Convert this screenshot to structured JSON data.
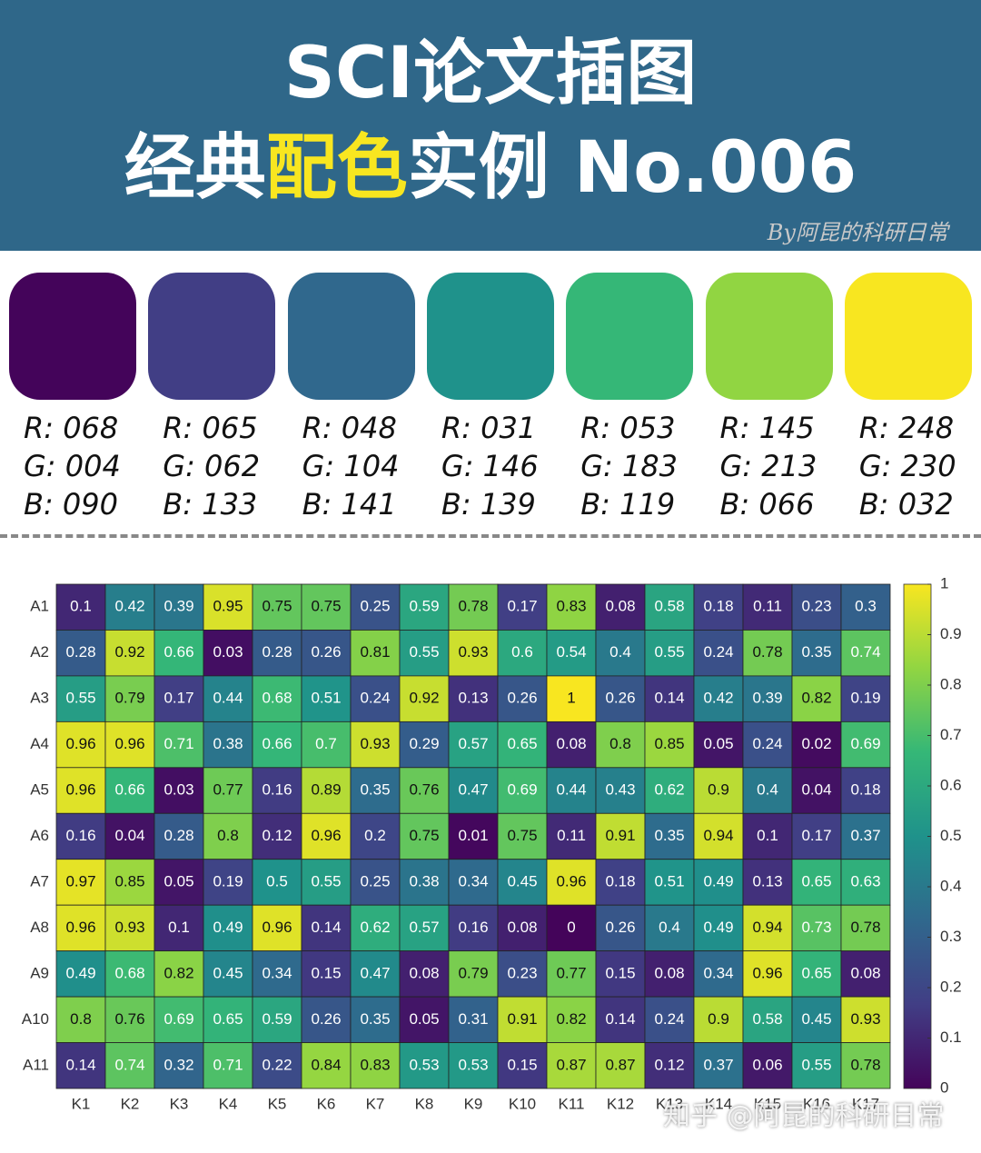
{
  "header": {
    "title_line1": "SCI论文插图",
    "title_line2_parts": [
      "经典",
      "配色",
      "实例 No.006"
    ],
    "signature": "By阿昆的科研日常"
  },
  "swatches": [
    {
      "color": "#44045a",
      "lines": [
        "R: 068",
        "G: 004",
        "B: 090"
      ]
    },
    {
      "color": "#413e85",
      "lines": [
        "R: 065",
        "G: 062",
        "B: 133"
      ]
    },
    {
      "color": "#30688d",
      "lines": [
        "R: 048",
        "G: 104",
        "B: 141"
      ]
    },
    {
      "color": "#1f928b",
      "lines": [
        "R: 031",
        "G: 146",
        "B: 139"
      ]
    },
    {
      "color": "#35b777",
      "lines": [
        "R: 053",
        "G: 183",
        "B: 119"
      ]
    },
    {
      "color": "#91d542",
      "lines": [
        "R: 145",
        "G: 213",
        "B: 066"
      ]
    },
    {
      "color": "#f8e620",
      "lines": [
        "R: 248",
        "G: 230",
        "B: 032"
      ]
    }
  ],
  "watermark": "知乎 @阿昆的科研日常",
  "chart_data": {
    "type": "heatmap",
    "colormap": [
      "#44045a",
      "#413e85",
      "#30688d",
      "#1f928b",
      "#35b777",
      "#91d542",
      "#f8e620"
    ],
    "x_categories": [
      "K1",
      "K2",
      "K3",
      "K4",
      "K5",
      "K6",
      "K7",
      "K8",
      "K9",
      "K10",
      "K11",
      "K12",
      "K13",
      "K14",
      "K15",
      "K16",
      "K17"
    ],
    "y_categories": [
      "A1",
      "A2",
      "A3",
      "A4",
      "A5",
      "A6",
      "A7",
      "A8",
      "A9",
      "A10",
      "A11"
    ],
    "values": [
      [
        0.1,
        0.42,
        0.39,
        0.95,
        0.75,
        0.75,
        0.25,
        0.59,
        0.78,
        0.17,
        0.83,
        0.08,
        0.58,
        0.18,
        0.11,
        0.23,
        0.3
      ],
      [
        0.28,
        0.92,
        0.66,
        0.03,
        0.28,
        0.26,
        0.81,
        0.55,
        0.93,
        0.6,
        0.54,
        0.4,
        0.55,
        0.24,
        0.78,
        0.35,
        0.74
      ],
      [
        0.55,
        0.79,
        0.17,
        0.44,
        0.68,
        0.51,
        0.24,
        0.92,
        0.13,
        0.26,
        1,
        0.26,
        0.14,
        0.42,
        0.39,
        0.82,
        0.19
      ],
      [
        0.96,
        0.96,
        0.71,
        0.38,
        0.66,
        0.7,
        0.93,
        0.29,
        0.57,
        0.65,
        0.08,
        0.8,
        0.85,
        0.05,
        0.24,
        0.02,
        0.69
      ],
      [
        0.96,
        0.66,
        0.03,
        0.77,
        0.16,
        0.89,
        0.35,
        0.76,
        0.47,
        0.69,
        0.44,
        0.43,
        0.62,
        0.9,
        0.4,
        0.04,
        0.18
      ],
      [
        0.16,
        0.04,
        0.28,
        0.8,
        0.12,
        0.96,
        0.2,
        0.75,
        0.01,
        0.75,
        0.11,
        0.91,
        0.35,
        0.94,
        0.1,
        0.17,
        0.37
      ],
      [
        0.97,
        0.85,
        0.05,
        0.19,
        0.5,
        0.55,
        0.25,
        0.38,
        0.34,
        0.45,
        0.96,
        0.18,
        0.51,
        0.49,
        0.13,
        0.65,
        0.63
      ],
      [
        0.96,
        0.93,
        0.1,
        0.49,
        0.96,
        0.14,
        0.62,
        0.57,
        0.16,
        0.08,
        0,
        0.26,
        0.4,
        0.49,
        0.94,
        0.73,
        0.78
      ],
      [
        0.49,
        0.68,
        0.82,
        0.45,
        0.34,
        0.15,
        0.47,
        0.08,
        0.79,
        0.23,
        0.77,
        0.15,
        0.08,
        0.34,
        0.96,
        0.65,
        0.08
      ],
      [
        0.8,
        0.76,
        0.69,
        0.65,
        0.59,
        0.26,
        0.35,
        0.05,
        0.31,
        0.91,
        0.82,
        0.14,
        0.24,
        0.9,
        0.58,
        0.45,
        0.93
      ],
      [
        0.14,
        0.74,
        0.32,
        0.71,
        0.22,
        0.84,
        0.83,
        0.53,
        0.53,
        0.15,
        0.87,
        0.87,
        0.12,
        0.37,
        0.06,
        0.55,
        0.78
      ]
    ],
    "clim": [
      0,
      1
    ],
    "cticks": [
      0,
      0.1,
      0.2,
      0.3,
      0.4,
      0.5,
      0.6,
      0.7,
      0.8,
      0.9,
      1
    ]
  }
}
